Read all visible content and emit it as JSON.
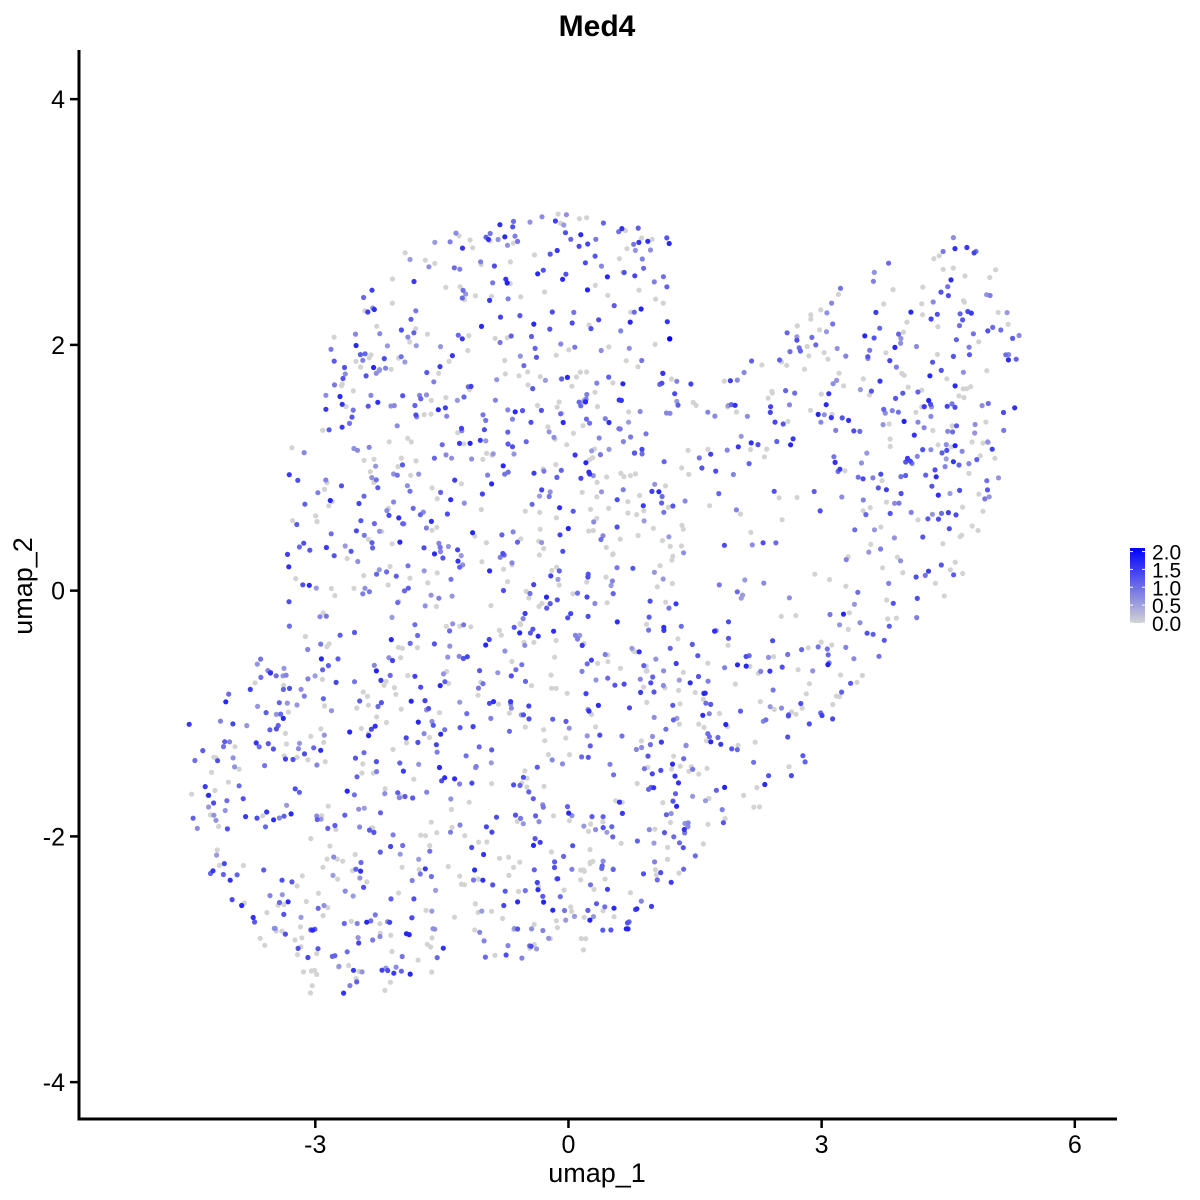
{
  "chart_data": {
    "type": "scatter",
    "title": "Med4",
    "xlabel": "umap_1",
    "ylabel": "umap_2",
    "xlim": [
      -5.8,
      6.5
    ],
    "ylim": [
      -4.3,
      4.4
    ],
    "xticks": [
      -3,
      0,
      3,
      6
    ],
    "xtick_labels": [
      "-3",
      "0",
      "3",
      "6"
    ],
    "yticks": [
      -4,
      -2,
      0,
      2,
      4
    ],
    "ytick_labels": [
      "-4",
      "-2",
      "0",
      "2",
      "4"
    ],
    "grid": false,
    "legend": {
      "type": "colorbar",
      "position": "right",
      "range": [
        0,
        2.1
      ],
      "ticks": [
        0,
        0.5,
        1.0,
        1.5,
        2.0
      ],
      "tick_labels": [
        "0.0",
        "0.5",
        "1.0",
        "1.5",
        "2.0"
      ],
      "low_color": "#D3D3D3",
      "high_color": "#0000FF"
    },
    "approx_point_count": 1900,
    "color_value_note_values": [
      0,
      0.5,
      1.0,
      1.5,
      2.0
    ],
    "max_expression_point": {
      "x": 1.2,
      "y": 2.05,
      "value": 2.1
    },
    "region_outline": [
      [
        -4.6,
        -1.1
      ],
      [
        -3.4,
        -0.4
      ],
      [
        -3.3,
        1.3
      ],
      [
        -2.7,
        2.2
      ],
      [
        -2.2,
        2.6
      ],
      [
        -1.5,
        3.0
      ],
      [
        -0.5,
        3.05
      ],
      [
        0.2,
        3.1
      ],
      [
        1.2,
        2.9
      ],
      [
        1.2,
        2.2
      ],
      [
        1.6,
        1.6
      ],
      [
        2.4,
        2.0
      ],
      [
        3.3,
        2.6
      ],
      [
        4.4,
        2.8
      ],
      [
        4.5,
        3.05
      ],
      [
        5.0,
        2.7
      ],
      [
        5.35,
        2.3
      ],
      [
        5.35,
        1.7
      ],
      [
        5.2,
        1.0
      ],
      [
        4.9,
        0.6
      ],
      [
        4.7,
        0.1
      ],
      [
        3.6,
        -0.6
      ],
      [
        2.6,
        -1.6
      ],
      [
        2.0,
        -1.9
      ],
      [
        1.5,
        -2.2
      ],
      [
        0.7,
        -2.8
      ],
      [
        0.0,
        -3.0
      ],
      [
        -1.2,
        -3.0
      ],
      [
        -2.2,
        -3.45
      ],
      [
        -3.2,
        -3.3
      ],
      [
        -4.2,
        -2.4
      ],
      [
        -4.7,
        -1.3
      ]
    ],
    "hollow_region": [
      [
        1.2,
        0.5
      ],
      [
        1.6,
        1.0
      ],
      [
        2.6,
        1.2
      ],
      [
        3.3,
        0.9
      ],
      [
        3.6,
        0.2
      ],
      [
        3.0,
        -0.4
      ],
      [
        2.2,
        -0.5
      ],
      [
        1.3,
        -0.1
      ]
    ]
  }
}
